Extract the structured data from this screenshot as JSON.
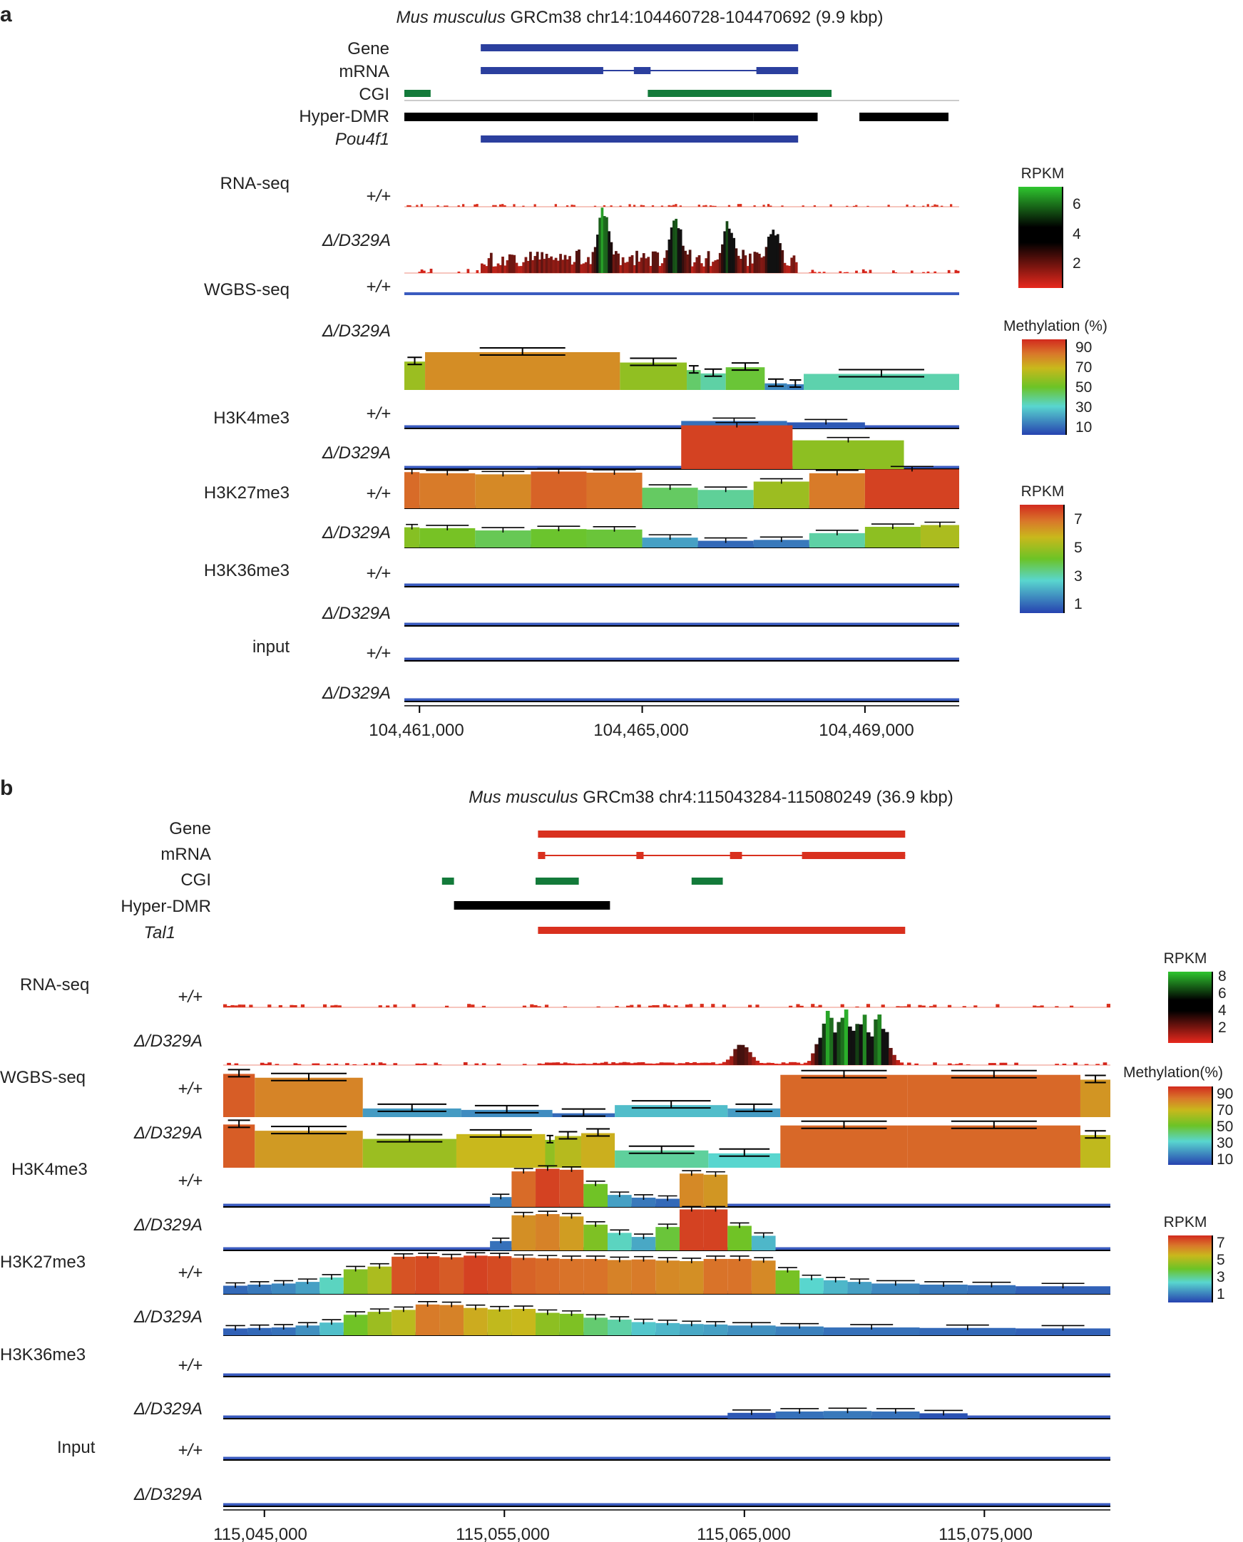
{
  "colors": {
    "gene_a": "#2b3f9e",
    "gene_b": "#d9301e",
    "cgi": "#137a3a",
    "dmr": "#000000",
    "track_line": "#3a5bbf"
  },
  "chart_data": [
    {
      "type": "genome-track",
      "panel_label": "a",
      "title_species": "Mus musculus",
      "title_rest": "GRCm38 chr14:104460728-104470692 (9.9 kbp)",
      "xlim": [
        104460728,
        104470692
      ],
      "ticks": [
        104461000,
        104465000,
        104469000
      ],
      "tick_labels": [
        "104,461,000",
        "104,465,000",
        "104,469,000"
      ],
      "annotation_labels": [
        "Gene",
        "mRNA",
        "CGI",
        "Hyper-DMR",
        "Pou4f1"
      ],
      "annotations": {
        "gene": [
          [
            104462100,
            104467800
          ]
        ],
        "mrna_exons": [
          [
            104462100,
            104464300
          ],
          [
            104464850,
            104465150
          ],
          [
            104467050,
            104467800
          ]
        ],
        "cgi": [
          [
            104460728,
            104461200
          ],
          [
            104465100,
            104468400
          ]
        ],
        "dmr": [
          [
            104460728,
            104467000
          ],
          [
            104467000,
            104468150
          ],
          [
            104468900,
            104470500
          ]
        ],
        "symbol": [
          [
            104462100,
            104467800
          ]
        ]
      },
      "groups": [
        "RNA-seq",
        "WGBS-seq",
        "H3K4me3",
        "H3K27me3",
        "H3K36me3",
        "input"
      ],
      "genotypes": [
        "+/+",
        "Δ/D329A"
      ],
      "rna_peaks": [
        [
          104465600,
          5.9
        ],
        [
          104466550,
          5.2
        ],
        [
          104467350,
          4.8
        ],
        [
          104464300,
          6.4
        ]
      ],
      "scales": [
        {
          "name": "RPKM",
          "ticks": [
            "6",
            "4",
            "2"
          ],
          "kind": "rna"
        },
        {
          "name": "Methylation (%)",
          "ticks": [
            "90",
            "70",
            "50",
            "30",
            "10"
          ],
          "kind": "meth"
        },
        {
          "name": "RPKM",
          "ticks": [
            "7",
            "5",
            "3",
            "1"
          ],
          "kind": "chip"
        }
      ],
      "wgbs_dmut": [
        {
          "s": 104460728,
          "e": 104461100,
          "v": 60
        },
        {
          "s": 104461100,
          "e": 104464600,
          "v": 80
        },
        {
          "s": 104464600,
          "e": 104465800,
          "v": 58
        },
        {
          "s": 104465800,
          "e": 104466050,
          "v": 42
        },
        {
          "s": 104466050,
          "e": 104466500,
          "v": 35
        },
        {
          "s": 104466500,
          "e": 104467200,
          "v": 48
        },
        {
          "s": 104467200,
          "e": 104467600,
          "v": 14
        },
        {
          "s": 104467600,
          "e": 104467900,
          "v": 12
        },
        {
          "s": 104467900,
          "e": 104470692,
          "v": 34
        }
      ],
      "h3k4_wt": [
        {
          "s": 104465700,
          "e": 104467600,
          "v": 1.6
        },
        {
          "s": 104467600,
          "e": 104469000,
          "v": 1.3
        }
      ],
      "h3k4_mut": [
        {
          "s": 104465700,
          "e": 104467700,
          "v": 7.0
        },
        {
          "s": 104467700,
          "e": 104469700,
          "v": 4.6
        }
      ],
      "h3k27_wt": [
        {
          "s": 104460728,
          "e": 104461000,
          "v": 6.5
        },
        {
          "s": 104461000,
          "e": 104462000,
          "v": 6.3
        },
        {
          "s": 104462000,
          "e": 104463000,
          "v": 6.1
        },
        {
          "s": 104463000,
          "e": 104464000,
          "v": 6.6
        },
        {
          "s": 104464000,
          "e": 104465000,
          "v": 6.4
        },
        {
          "s": 104465000,
          "e": 104466000,
          "v": 3.7
        },
        {
          "s": 104466000,
          "e": 104467000,
          "v": 3.3
        },
        {
          "s": 104467000,
          "e": 104468000,
          "v": 4.8
        },
        {
          "s": 104468000,
          "e": 104469000,
          "v": 6.3
        },
        {
          "s": 104469000,
          "e": 104470692,
          "v": 7.0
        }
      ],
      "h3k27_mut": [
        {
          "s": 104460728,
          "e": 104461000,
          "v": 4.5
        },
        {
          "s": 104461000,
          "e": 104462000,
          "v": 4.3
        },
        {
          "s": 104462000,
          "e": 104463000,
          "v": 3.8
        },
        {
          "s": 104463000,
          "e": 104464000,
          "v": 4.1
        },
        {
          "s": 104464000,
          "e": 104465000,
          "v": 4.0
        },
        {
          "s": 104465000,
          "e": 104466000,
          "v": 2.2
        },
        {
          "s": 104466000,
          "e": 104467000,
          "v": 1.5
        },
        {
          "s": 104467000,
          "e": 104468000,
          "v": 1.7
        },
        {
          "s": 104468000,
          "e": 104469000,
          "v": 3.2
        },
        {
          "s": 104469000,
          "e": 104470000,
          "v": 4.6
        },
        {
          "s": 104470000,
          "e": 104470692,
          "v": 5.0
        }
      ]
    },
    {
      "type": "genome-track",
      "panel_label": "b",
      "title_species": "Mus musculus",
      "title_rest": "GRCm38 chr4:115043284-115080249 (36.9 kbp)",
      "xlim": [
        115043284,
        115080249
      ],
      "ticks": [
        115045000,
        115055000,
        115065000,
        115075000
      ],
      "tick_labels": [
        "115,045,000",
        "115,055,000",
        "115,065,000",
        "115,075,000"
      ],
      "annotation_labels": [
        "Gene",
        "mRNA",
        "CGI",
        "Hyper-DMR",
        "Tal1"
      ],
      "annotations": {
        "gene": [
          [
            115056400,
            115071700
          ]
        ],
        "mrna_exons": [
          [
            115056400,
            115056700
          ],
          [
            115060500,
            115060800
          ],
          [
            115064400,
            115064900
          ],
          [
            115067400,
            115071700
          ]
        ],
        "cgi": [
          [
            115052400,
            115052900
          ],
          [
            115056300,
            115058100
          ],
          [
            115062800,
            115064100
          ]
        ],
        "dmr": [
          [
            115052900,
            115059400
          ]
        ],
        "symbol": [
          [
            115056400,
            115071700
          ]
        ]
      },
      "groups": [
        "RNA-seq",
        "WGBS-seq",
        "H3K4me3",
        "H3K27me3",
        "H3K36me3",
        "Input"
      ],
      "genotypes": [
        "+/+",
        "Δ/D329A"
      ],
      "rna_peaks": [
        [
          115068500,
          7.8
        ],
        [
          115069200,
          8.0
        ],
        [
          115069900,
          7.5
        ],
        [
          115070600,
          7.2
        ],
        [
          115064900,
          3.2
        ]
      ],
      "scales": [
        {
          "name": "RPKM",
          "ticks": [
            "8",
            "6",
            "4",
            "2"
          ],
          "kind": "rna"
        },
        {
          "name": "Methylation(%)",
          "ticks": [
            "90",
            "70",
            "50",
            "30",
            "10"
          ],
          "kind": "meth"
        },
        {
          "name": "RPKM",
          "ticks": [
            "7",
            "5",
            "3",
            "1"
          ],
          "kind": "chip"
        }
      ],
      "wgbs_wt": [
        {
          "s": 115043284,
          "e": 115044600,
          "v": 90
        },
        {
          "s": 115044600,
          "e": 115049100,
          "v": 82
        },
        {
          "s": 115049100,
          "e": 115053200,
          "v": 18
        },
        {
          "s": 115053200,
          "e": 115057000,
          "v": 15
        },
        {
          "s": 115057000,
          "e": 115059600,
          "v": 8
        },
        {
          "s": 115059600,
          "e": 115064300,
          "v": 25
        },
        {
          "s": 115064300,
          "e": 115066500,
          "v": 18
        },
        {
          "s": 115066500,
          "e": 115071800,
          "v": 88
        },
        {
          "s": 115071800,
          "e": 115079000,
          "v": 88
        },
        {
          "s": 115079000,
          "e": 115080249,
          "v": 78
        }
      ],
      "wgbs_mut": [
        {
          "s": 115043284,
          "e": 115044600,
          "v": 90
        },
        {
          "s": 115044600,
          "e": 115049100,
          "v": 77
        },
        {
          "s": 115049100,
          "e": 115053000,
          "v": 60
        },
        {
          "s": 115053000,
          "e": 115056700,
          "v": 70
        },
        {
          "s": 115056700,
          "e": 115057100,
          "v": 58
        },
        {
          "s": 115057100,
          "e": 115058200,
          "v": 66
        },
        {
          "s": 115058200,
          "e": 115059600,
          "v": 72
        },
        {
          "s": 115059600,
          "e": 115063500,
          "v": 36
        },
        {
          "s": 115063500,
          "e": 115066500,
          "v": 30
        },
        {
          "s": 115066500,
          "e": 115071800,
          "v": 88
        },
        {
          "s": 115071800,
          "e": 115079000,
          "v": 88
        },
        {
          "s": 115079000,
          "e": 115080249,
          "v": 68
        }
      ],
      "h3k4_wt": [
        {
          "s": 115054400,
          "e": 115055300,
          "v": 1.8
        },
        {
          "s": 115055300,
          "e": 115056300,
          "v": 6.5
        },
        {
          "s": 115056300,
          "e": 115057300,
          "v": 7.0
        },
        {
          "s": 115057300,
          "e": 115058300,
          "v": 6.8
        },
        {
          "s": 115058300,
          "e": 115059300,
          "v": 4.2
        },
        {
          "s": 115059300,
          "e": 115060300,
          "v": 2.2
        },
        {
          "s": 115060300,
          "e": 115061300,
          "v": 1.7
        },
        {
          "s": 115061300,
          "e": 115062300,
          "v": 1.5
        },
        {
          "s": 115062300,
          "e": 115063300,
          "v": 6.1
        },
        {
          "s": 115063300,
          "e": 115064300,
          "v": 5.9
        }
      ],
      "h3k4_mut": [
        {
          "s": 115054400,
          "e": 115055300,
          "v": 1.6
        },
        {
          "s": 115055300,
          "e": 115056300,
          "v": 6.0
        },
        {
          "s": 115056300,
          "e": 115057300,
          "v": 6.2
        },
        {
          "s": 115057300,
          "e": 115058300,
          "v": 5.8
        },
        {
          "s": 115058300,
          "e": 115059300,
          "v": 4.4
        },
        {
          "s": 115059300,
          "e": 115060300,
          "v": 3.0
        },
        {
          "s": 115060300,
          "e": 115061300,
          "v": 2.3
        },
        {
          "s": 115061300,
          "e": 115062300,
          "v": 4.0
        },
        {
          "s": 115062300,
          "e": 115063300,
          "v": 7.0
        },
        {
          "s": 115063300,
          "e": 115064300,
          "v": 7.0
        },
        {
          "s": 115064300,
          "e": 115065300,
          "v": 4.2
        },
        {
          "s": 115065300,
          "e": 115066300,
          "v": 2.5
        }
      ],
      "h3k27_wt": [
        {
          "s": 115043284,
          "e": 115044300,
          "v": 1.5
        },
        {
          "s": 115044300,
          "e": 115045300,
          "v": 1.7
        },
        {
          "s": 115045300,
          "e": 115046300,
          "v": 1.9
        },
        {
          "s": 115046300,
          "e": 115047300,
          "v": 2.2
        },
        {
          "s": 115047300,
          "e": 115048300,
          "v": 3.0
        },
        {
          "s": 115048300,
          "e": 115049300,
          "v": 4.5
        },
        {
          "s": 115049300,
          "e": 115050300,
          "v": 5.0
        },
        {
          "s": 115050300,
          "e": 115051300,
          "v": 6.8
        },
        {
          "s": 115051300,
          "e": 115052300,
          "v": 6.9
        },
        {
          "s": 115052300,
          "e": 115053300,
          "v": 6.7
        },
        {
          "s": 115053300,
          "e": 115054300,
          "v": 7.0
        },
        {
          "s": 115054300,
          "e": 115055300,
          "v": 6.9
        },
        {
          "s": 115055300,
          "e": 115056300,
          "v": 6.6
        },
        {
          "s": 115056300,
          "e": 115057300,
          "v": 6.5
        },
        {
          "s": 115057300,
          "e": 115058300,
          "v": 6.4
        },
        {
          "s": 115058300,
          "e": 115059300,
          "v": 6.4
        },
        {
          "s": 115059300,
          "e": 115060300,
          "v": 6.2
        },
        {
          "s": 115060300,
          "e": 115061300,
          "v": 6.3
        },
        {
          "s": 115061300,
          "e": 115062300,
          "v": 6.1
        },
        {
          "s": 115062300,
          "e": 115063300,
          "v": 6.0
        },
        {
          "s": 115063300,
          "e": 115064300,
          "v": 6.4
        },
        {
          "s": 115064300,
          "e": 115065300,
          "v": 6.4
        },
        {
          "s": 115065300,
          "e": 115066300,
          "v": 6.1
        },
        {
          "s": 115066300,
          "e": 115067300,
          "v": 4.3
        },
        {
          "s": 115067300,
          "e": 115068300,
          "v": 2.9
        },
        {
          "s": 115068300,
          "e": 115069300,
          "v": 2.5
        },
        {
          "s": 115069300,
          "e": 115070300,
          "v": 2.2
        },
        {
          "s": 115070300,
          "e": 115072300,
          "v": 1.9
        },
        {
          "s": 115072300,
          "e": 115074300,
          "v": 1.7
        },
        {
          "s": 115074300,
          "e": 115076300,
          "v": 1.6
        },
        {
          "s": 115076300,
          "e": 115080249,
          "v": 1.4
        }
      ],
      "h3k27_mut": [
        {
          "s": 115043284,
          "e": 115044300,
          "v": 1.4
        },
        {
          "s": 115044300,
          "e": 115045300,
          "v": 1.5
        },
        {
          "s": 115045300,
          "e": 115046300,
          "v": 1.6
        },
        {
          "s": 115046300,
          "e": 115047300,
          "v": 2.0
        },
        {
          "s": 115047300,
          "e": 115048300,
          "v": 2.6
        },
        {
          "s": 115048300,
          "e": 115049300,
          "v": 4.2
        },
        {
          "s": 115049300,
          "e": 115050300,
          "v": 4.8
        },
        {
          "s": 115050300,
          "e": 115051300,
          "v": 5.2
        },
        {
          "s": 115051300,
          "e": 115052300,
          "v": 6.3
        },
        {
          "s": 115052300,
          "e": 115053300,
          "v": 6.2
        },
        {
          "s": 115053300,
          "e": 115054300,
          "v": 5.6
        },
        {
          "s": 115054300,
          "e": 115055300,
          "v": 5.3
        },
        {
          "s": 115055300,
          "e": 115056300,
          "v": 5.4
        },
        {
          "s": 115056300,
          "e": 115057300,
          "v": 4.6
        },
        {
          "s": 115057300,
          "e": 115058300,
          "v": 4.4
        },
        {
          "s": 115058300,
          "e": 115059300,
          "v": 3.6
        },
        {
          "s": 115059300,
          "e": 115060300,
          "v": 3.2
        },
        {
          "s": 115060300,
          "e": 115061300,
          "v": 2.7
        },
        {
          "s": 115061300,
          "e": 115062300,
          "v": 2.5
        },
        {
          "s": 115062300,
          "e": 115063300,
          "v": 2.3
        },
        {
          "s": 115063300,
          "e": 115064300,
          "v": 2.2
        },
        {
          "s": 115064300,
          "e": 115066300,
          "v": 2.0
        },
        {
          "s": 115066300,
          "e": 115068300,
          "v": 1.8
        },
        {
          "s": 115068300,
          "e": 115072300,
          "v": 1.6
        },
        {
          "s": 115072300,
          "e": 115076300,
          "v": 1.5
        },
        {
          "s": 115076300,
          "e": 115080249,
          "v": 1.4
        }
      ],
      "h3k36_mut": [
        {
          "s": 115064300,
          "e": 115066300,
          "v": 1.3
        },
        {
          "s": 115066300,
          "e": 115068300,
          "v": 1.6
        },
        {
          "s": 115068300,
          "e": 115070300,
          "v": 1.7
        },
        {
          "s": 115070300,
          "e": 115072300,
          "v": 1.6
        },
        {
          "s": 115072300,
          "e": 115074300,
          "v": 1.2
        }
      ]
    }
  ]
}
